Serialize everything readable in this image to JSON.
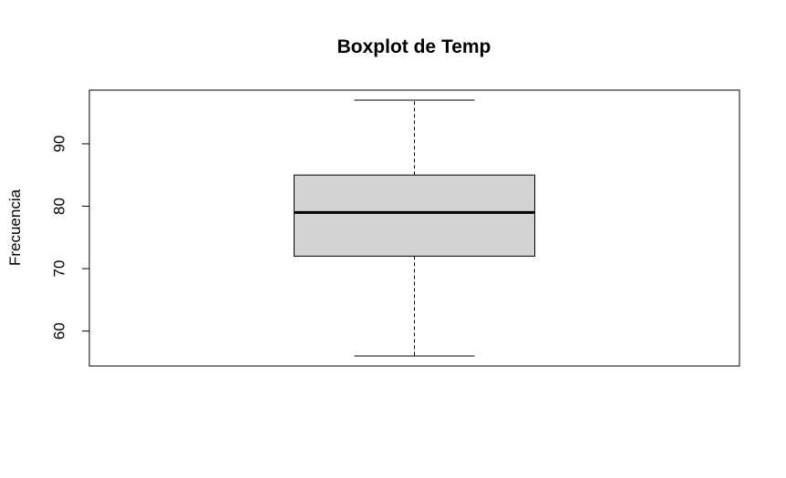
{
  "chart_data": {
    "type": "boxplot",
    "title": "Boxplot de Temp",
    "xlabel": "",
    "ylabel": "Frecuencia",
    "ylim": [
      54.4,
      98.6
    ],
    "yticks": [
      60,
      70,
      80,
      90
    ],
    "ytick_labels": [
      "60",
      "70",
      "80",
      "90"
    ],
    "grid": false,
    "series": [
      {
        "whisker_low": 56,
        "q1": 72,
        "median": 79,
        "q3": 85,
        "whisker_high": 97
      }
    ],
    "colors": {
      "box_fill": "#d3d3d3",
      "stroke": "#000000"
    }
  }
}
